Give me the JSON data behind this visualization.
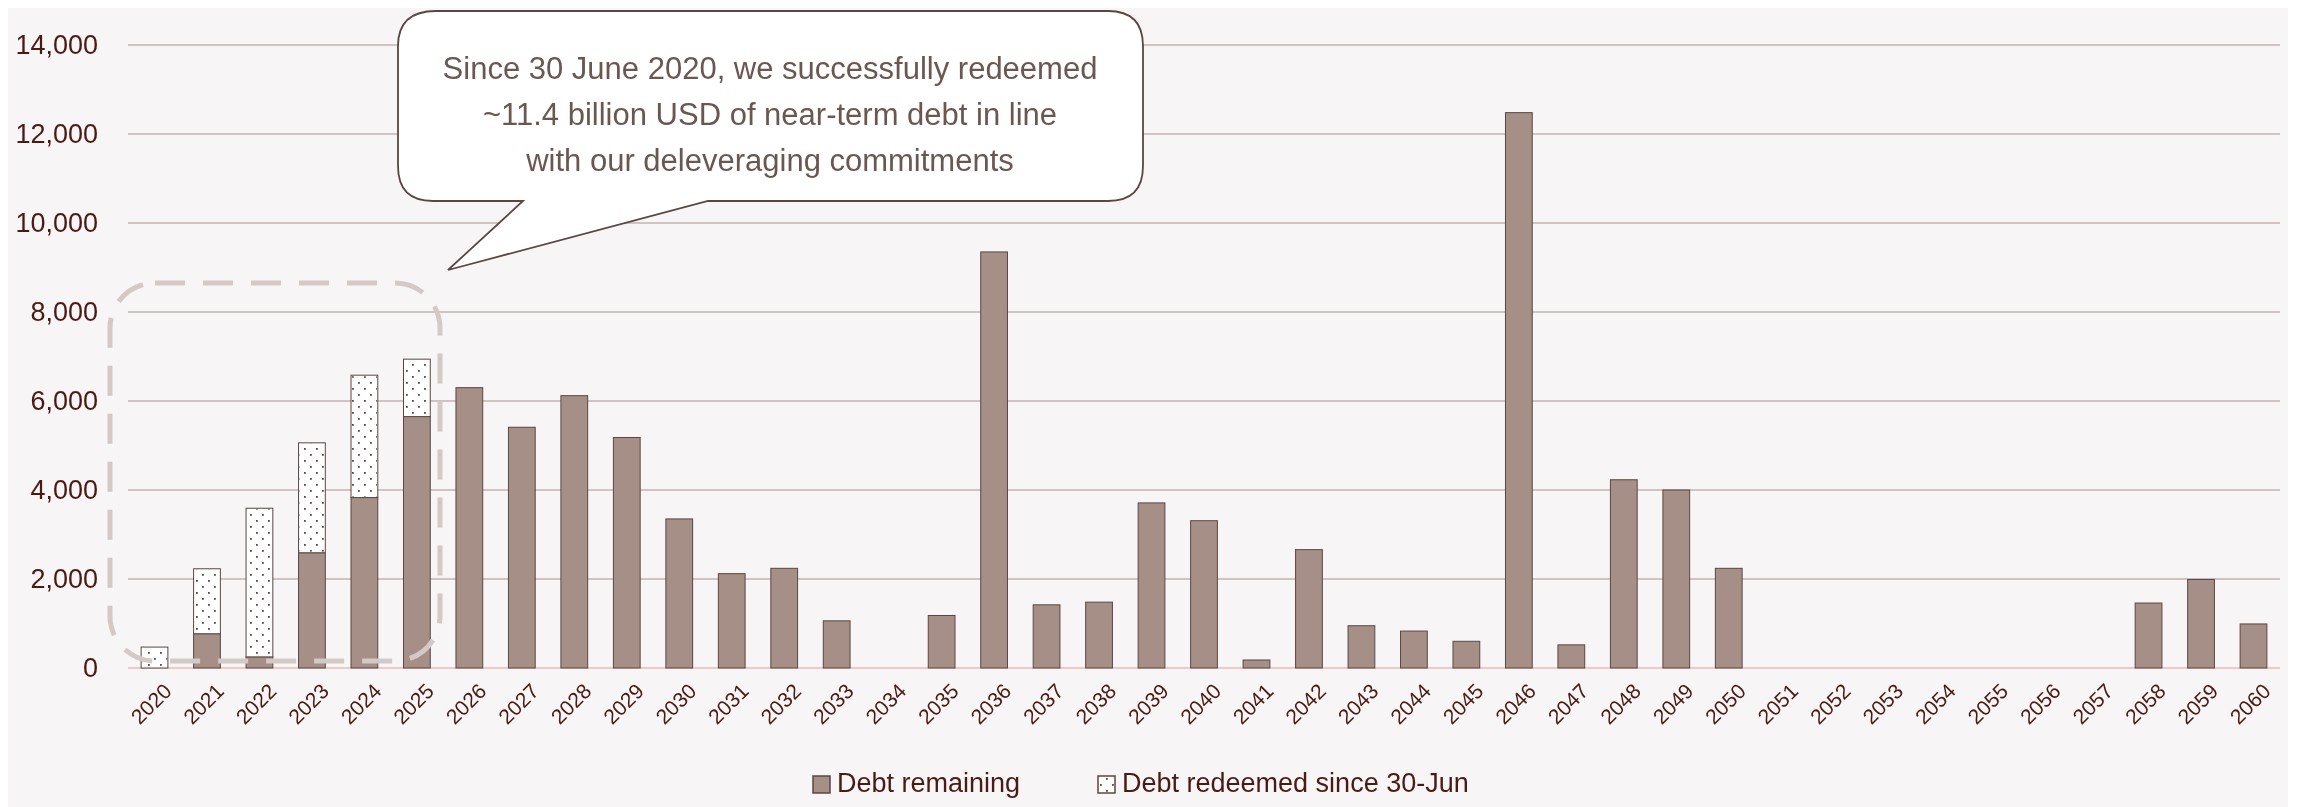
{
  "chart_data": {
    "type": "bar",
    "stacked": true,
    "categories": [
      "2020",
      "2021",
      "2022",
      "2023",
      "2024",
      "2025",
      "2026",
      "2027",
      "2028",
      "2029",
      "2030",
      "2031",
      "2032",
      "2033",
      "2034",
      "2035",
      "2036",
      "2037",
      "2038",
      "2039",
      "2040",
      "2041",
      "2042",
      "2043",
      "2044",
      "2045",
      "2046",
      "2047",
      "2048",
      "2049",
      "2050",
      "2051",
      "2052",
      "2053",
      "2054",
      "2055",
      "2056",
      "2057",
      "2058",
      "2059",
      "2060"
    ],
    "series": [
      {
        "name": "Debt remaining",
        "color": "#a68f87",
        "values": [
          0,
          770,
          250,
          2590,
          3830,
          5650,
          6300,
          5410,
          6120,
          5180,
          3350,
          2120,
          2240,
          1060,
          0,
          1180,
          9350,
          1420,
          1480,
          3710,
          3310,
          180,
          2660,
          950,
          830,
          600,
          12480,
          520,
          4230,
          4000,
          2240,
          0,
          0,
          0,
          0,
          0,
          0,
          0,
          1460,
          1990,
          990
        ]
      },
      {
        "name": "Debt redeemed since 30-Jun",
        "color": "#ffffff",
        "values": [
          470,
          1460,
          3340,
          2470,
          2750,
          1290,
          0,
          0,
          0,
          0,
          0,
          0,
          0,
          0,
          0,
          0,
          0,
          0,
          0,
          0,
          0,
          0,
          0,
          0,
          0,
          0,
          0,
          0,
          0,
          0,
          0,
          0,
          0,
          0,
          0,
          0,
          0,
          0,
          0,
          0,
          0
        ]
      }
    ],
    "ylim": [
      0,
      14000
    ],
    "yticks": [
      {
        "value": 0,
        "label": "0"
      },
      {
        "value": 2000,
        "label": "2,000"
      },
      {
        "value": 4000,
        "label": "4,000"
      },
      {
        "value": 6000,
        "label": "6,000"
      },
      {
        "value": 8000,
        "label": "8,000"
      },
      {
        "value": 10000,
        "label": "10,000"
      },
      {
        "value": 12000,
        "label": "12,000"
      },
      {
        "value": 14000,
        "label": "14,000"
      }
    ],
    "grid": "y",
    "legend": "bottom",
    "annotations": [
      "Since 30 June 2020, we successfully redeemed ~11.4 billion USD of near-term debt in line with our deleveraging commitments"
    ]
  }
}
